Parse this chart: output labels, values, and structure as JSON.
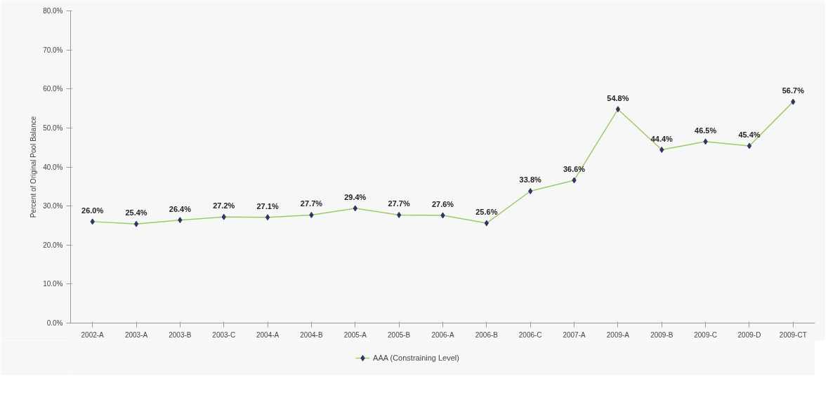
{
  "chart_data": {
    "type": "line",
    "ylabel": "Percent of Original Pool Balance",
    "categories": [
      "2002-A",
      "2003-A",
      "2003-B",
      "2003-C",
      "2004-A",
      "2004-B",
      "2005-A",
      "2005-B",
      "2006-A",
      "2006-B",
      "2006-C",
      "2007-A",
      "2009-A",
      "2009-B",
      "2009-C",
      "2009-D",
      "2009-CT"
    ],
    "series": [
      {
        "name": "AAA (Constraining Level)",
        "color": "#99cc66",
        "values": [
          26.0,
          25.4,
          26.4,
          27.2,
          27.1,
          27.7,
          29.4,
          27.7,
          27.6,
          25.6,
          33.8,
          36.6,
          54.8,
          44.4,
          46.5,
          45.4,
          56.7
        ],
        "value_labels": [
          "26.0%",
          "25.4%",
          "26.4%",
          "27.2%",
          "27.1%",
          "27.7%",
          "29.4%",
          "27.7%",
          "27.6%",
          "25.6%",
          "33.8%",
          "36.6%",
          "54.8%",
          "44.4%",
          "46.5%",
          "45.4%",
          "56.7%"
        ]
      }
    ],
    "ylim": [
      0,
      80
    ],
    "yticks": [
      {
        "value": 0,
        "label": "0.0%"
      },
      {
        "value": 10,
        "label": "10.0%"
      },
      {
        "value": 20,
        "label": "20.0%"
      },
      {
        "value": 30,
        "label": "30.0%"
      },
      {
        "value": 40,
        "label": "40.0%"
      },
      {
        "value": 50,
        "label": "50.0%"
      },
      {
        "value": 60,
        "label": "60.0%"
      },
      {
        "value": 70,
        "label": "70.0%"
      },
      {
        "value": 80,
        "label": "80.0%"
      }
    ],
    "grid": false,
    "legend": "bottom",
    "marker": "diamond",
    "line_style": "solid"
  }
}
